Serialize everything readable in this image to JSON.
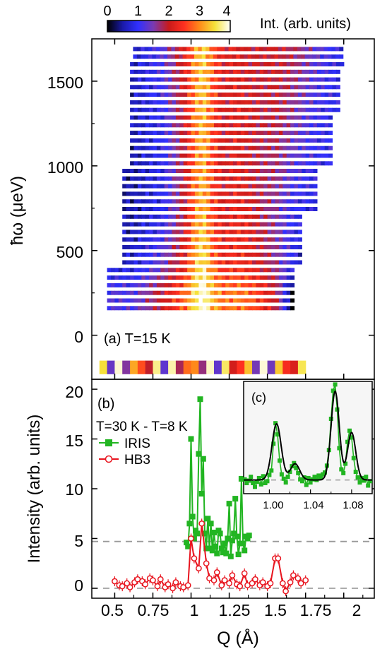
{
  "colorbar": {
    "ticks": [
      "0",
      "1",
      "2",
      "3",
      "4"
    ],
    "label": "Int. (arb. units)",
    "stops": [
      "#000000",
      "#1a1aa8",
      "#3030ff",
      "#7a3ab0",
      "#c81a1a",
      "#ff3020",
      "#ff8a1a",
      "#f6e23a",
      "#ffffff"
    ]
  },
  "panel_a": {
    "tag": "(a) T=15 K",
    "ylabel": "ħω (μeV)",
    "yticks": [
      "0",
      "500",
      "1000",
      "1500"
    ]
  },
  "panel_b": {
    "tag": "(b)",
    "subtitle": "T=30 K - T=8 K",
    "ylabel": "Intensity (arb. units)",
    "yticks": [
      "0",
      "5",
      "10",
      "15",
      "20"
    ],
    "xlabel": "Q (Å)",
    "xticks": [
      "0.5",
      "0.75",
      "1",
      "1.25",
      "1.5",
      "1.75",
      "2"
    ]
  },
  "panel_c": {
    "tag": "(c)",
    "xticks": [
      "1.00",
      "1.04",
      "1.08"
    ]
  },
  "chart_data": [
    {
      "panel": "a",
      "type": "heatmap",
      "xlabel": "",
      "ylabel": "ħω (μeV)",
      "xlim": [
        0.35,
        2.2
      ],
      "ylim": [
        -260,
        1750
      ],
      "zlim": [
        0,
        4
      ],
      "colorbar_label": "Int. (arb. units)",
      "annotation": "(a) T=15 K",
      "q_centers": [
        0.6,
        0.8,
        0.95,
        1.02,
        1.07,
        1.12,
        1.2,
        1.28,
        1.35,
        1.45,
        1.55,
        1.65,
        1.8,
        1.95
      ],
      "row_energy": [
        1600,
        1300,
        1000,
        700,
        400,
        250
      ],
      "intensity": [
        [
          0.6,
          1.2,
          2.2,
          3.1,
          3.4,
          2.8,
          2.1,
          2.2,
          2.0,
          2.0,
          2.0,
          1.8,
          1.3,
          0.9
        ],
        [
          0.6,
          1.0,
          2.1,
          3.0,
          3.3,
          2.7,
          2.0,
          2.2,
          2.1,
          1.9,
          1.9,
          1.6,
          1.1,
          0.9
        ],
        [
          0.5,
          0.9,
          2.0,
          2.9,
          3.2,
          2.6,
          2.0,
          2.2,
          2.0,
          1.8,
          1.7,
          1.3,
          1.0,
          0.9
        ],
        [
          0.5,
          0.9,
          2.0,
          3.0,
          3.3,
          2.6,
          2.1,
          2.3,
          2.2,
          1.8,
          1.5,
          1.0,
          0.8,
          0.0
        ],
        [
          0.7,
          1.4,
          2.3,
          3.3,
          3.6,
          2.9,
          2.3,
          2.4,
          2.3,
          2.0,
          1.6,
          1.0,
          0.0,
          0.0
        ],
        [
          1.2,
          2.0,
          2.8,
          3.6,
          4.0,
          3.3,
          2.8,
          2.9,
          2.8,
          2.4,
          1.9,
          0.0,
          0.0,
          0.0
        ]
      ]
    },
    {
      "panel": "b",
      "type": "line",
      "xlabel": "Q (Å)",
      "ylabel": "Intensity (arb. units)",
      "xlim": [
        0.35,
        2.2
      ],
      "ylim": [
        -1,
        21
      ],
      "annotation": "T=30 K - T=8 K",
      "reference_lines": [
        0,
        4.7
      ],
      "series": [
        {
          "name": "IRIS",
          "color": "#22b522",
          "marker": "square",
          "x": [
            0.97,
            0.98,
            0.99,
            1.0,
            1.01,
            1.02,
            1.03,
            1.04,
            1.05,
            1.06,
            1.07,
            1.08,
            1.09,
            1.1,
            1.11,
            1.12,
            1.13,
            1.14,
            1.15,
            1.16,
            1.17,
            1.18,
            1.19,
            1.2,
            1.21,
            1.22,
            1.23,
            1.24,
            1.25,
            1.26,
            1.27,
            1.28,
            1.29,
            1.3,
            1.31,
            1.32,
            1.33,
            1.34,
            1.35,
            1.36,
            1.37,
            1.38
          ],
          "y": [
            4.6,
            4.2,
            6.5,
            15.0,
            7.2,
            5.0,
            5.8,
            5.5,
            13.5,
            19.0,
            9.5,
            13.0,
            5.5,
            4.0,
            7.0,
            4.0,
            6.5,
            3.8,
            5.6,
            4.2,
            3.5,
            5.8,
            5.5,
            4.0,
            3.6,
            4.5,
            3.5,
            5.0,
            8.5,
            3.2,
            4.8,
            5.5,
            9.0,
            5.2,
            3.4,
            4.5,
            11.0,
            4.5,
            3.8,
            5.2,
            5.0,
            5.3
          ]
        },
        {
          "name": "HB3",
          "color": "#e8141e",
          "marker": "circle",
          "x": [
            0.5,
            0.53,
            0.55,
            0.58,
            0.6,
            0.63,
            0.65,
            0.68,
            0.7,
            0.73,
            0.75,
            0.78,
            0.8,
            0.83,
            0.85,
            0.88,
            0.9,
            0.93,
            0.95,
            0.98,
            1.0,
            1.02,
            1.05,
            1.07,
            1.1,
            1.12,
            1.15,
            1.17,
            1.2,
            1.22,
            1.25,
            1.27,
            1.3,
            1.32,
            1.35,
            1.37,
            1.4,
            1.42,
            1.45,
            1.47,
            1.5,
            1.52,
            1.55,
            1.57,
            1.6,
            1.62,
            1.65,
            1.67,
            1.7,
            1.72,
            1.75
          ],
          "y": [
            0.7,
            0.3,
            0.2,
            0.5,
            0.1,
            0.6,
            0.9,
            0.7,
            0.4,
            1.0,
            0.8,
            0.2,
            0.9,
            0.1,
            0.4,
            0.0,
            0.6,
            0.2,
            0.1,
            0.3,
            5.0,
            3.0,
            2.0,
            6.5,
            2.5,
            1.0,
            0.8,
            1.6,
            0.3,
            0.8,
            0.5,
            1.3,
            0.4,
            0.2,
            1.5,
            0.3,
            0.5,
            0.9,
            0.3,
            0.6,
            0.2,
            0.5,
            3.0,
            3.0,
            0.5,
            -0.3,
            0.6,
            1.3,
            1.0,
            0.5,
            0.8
          ]
        }
      ]
    },
    {
      "panel": "c",
      "type": "line",
      "xlim": [
        0.975,
        1.1
      ],
      "ylim": [
        2.5,
        20.5
      ],
      "reference_lines": [
        4.7
      ],
      "series": [
        {
          "name": "IRIS",
          "color": "#22b522",
          "marker": "square",
          "x": [
            0.976,
            0.978,
            0.98,
            0.982,
            0.984,
            0.986,
            0.988,
            0.99,
            0.992,
            0.994,
            0.996,
            0.998,
            1.0,
            1.002,
            1.004,
            1.006,
            1.008,
            1.01,
            1.012,
            1.014,
            1.016,
            1.018,
            1.02,
            1.022,
            1.024,
            1.026,
            1.028,
            1.03,
            1.032,
            1.034,
            1.036,
            1.038,
            1.04,
            1.042,
            1.044,
            1.046,
            1.048,
            1.05,
            1.052,
            1.054,
            1.056,
            1.058,
            1.06,
            1.062,
            1.064,
            1.066,
            1.068,
            1.07,
            1.072,
            1.074,
            1.076,
            1.078,
            1.08,
            1.082,
            1.084,
            1.086,
            1.088,
            1.09,
            1.092,
            1.094,
            1.096,
            1.098
          ],
          "y": [
            4.8,
            4.2,
            4.6,
            5.2,
            4.2,
            3.6,
            4.4,
            5.0,
            4.0,
            5.3,
            4.2,
            4.5,
            5.5,
            6.2,
            10.5,
            13.8,
            12.0,
            7.8,
            5.6,
            4.9,
            4.3,
            5.2,
            6.0,
            6.9,
            7.4,
            6.6,
            5.8,
            4.8,
            4.5,
            5.1,
            3.9,
            5.0,
            4.3,
            4.8,
            5.2,
            4.7,
            5.4,
            5.0,
            5.6,
            5.9,
            7.0,
            9.5,
            14.5,
            19.0,
            20.0,
            16.0,
            9.8,
            6.4,
            5.8,
            7.3,
            10.8,
            12.6,
            11.5,
            8.2,
            6.0,
            5.1,
            4.3,
            5.0,
            4.6,
            5.2,
            3.8,
            4.5
          ]
        },
        {
          "name": "Fit",
          "color": "#000000",
          "peaks": [
            {
              "center": 1.007,
              "height": 9.0,
              "width": 0.0045
            },
            {
              "center": 1.025,
              "height": 2.6,
              "width": 0.0045
            },
            {
              "center": 1.064,
              "height": 14.2,
              "width": 0.004
            },
            {
              "center": 1.08,
              "height": 7.6,
              "width": 0.004
            }
          ],
          "baseline": 4.7
        }
      ]
    }
  ]
}
